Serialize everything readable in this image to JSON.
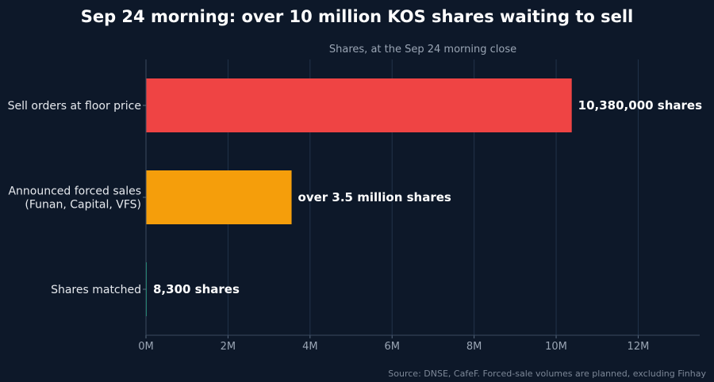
{
  "title": "Sep 24 morning: over 10 million KOS shares waiting to sell",
  "subtitle": "Shares, at the Sep 24 morning close",
  "source": "Source: DNSE, CafeF. Forced-sale volumes are planned, excluding Finhay",
  "chart_data": {
    "type": "bar",
    "orientation": "horizontal",
    "title": "Sep 24 morning: over 10 million KOS shares waiting to sell",
    "subtitle": "Shares, at the Sep 24 morning close",
    "categories": [
      [
        "Sell orders at floor price"
      ],
      [
        "Announced forced sales",
        "(Funan, Capital, VFS)"
      ],
      [
        "Shares matched"
      ]
    ],
    "values": [
      10380000,
      3550000,
      8300
    ],
    "value_labels": [
      "10,380,000 shares",
      "over 3.5 million shares",
      "8,300 shares"
    ],
    "colors": [
      "#ef4444",
      "#f59e0b",
      "#10b981"
    ],
    "xlim": [
      0,
      13500000
    ],
    "xticks": [
      0,
      2000000,
      4000000,
      6000000,
      8000000,
      10000000,
      12000000
    ],
    "xtick_labels": [
      "0M",
      "2M",
      "4M",
      "6M",
      "8M",
      "10M",
      "12M"
    ],
    "grid": "vertical"
  }
}
